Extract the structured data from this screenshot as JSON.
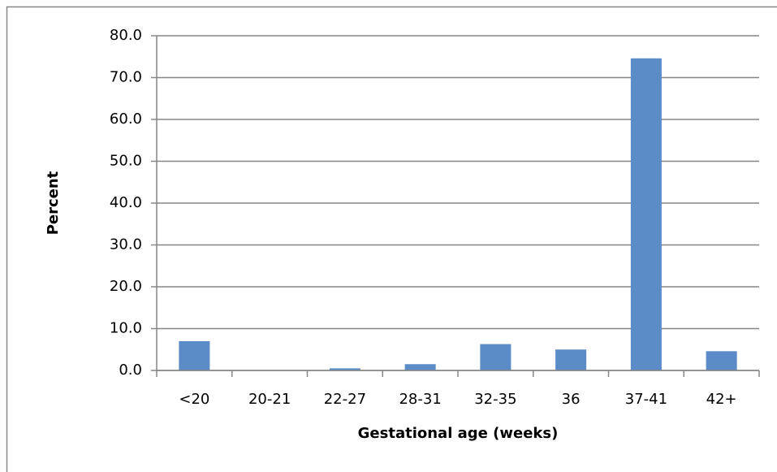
{
  "chart_data": {
    "type": "bar",
    "x_label": "Gestational age (weeks)",
    "y_label": "Percent",
    "categories": [
      "<20",
      "20-21",
      "22-27",
      "28-31",
      "32-35",
      "36",
      "37-41",
      "42+"
    ],
    "values": [
      7.0,
      0.1,
      0.5,
      1.5,
      6.3,
      5.0,
      74.6,
      4.6
    ],
    "color": "#5b8cc8",
    "ylim": [
      0,
      80
    ],
    "yticks": [
      {
        "value": 0,
        "label": "0.0"
      },
      {
        "value": 10,
        "label": "10.0"
      },
      {
        "value": 20,
        "label": "20.0"
      },
      {
        "value": 30,
        "label": "30.0"
      },
      {
        "value": 40,
        "label": "40.0"
      },
      {
        "value": 50,
        "label": "50.0"
      },
      {
        "value": 60,
        "label": "60.0"
      },
      {
        "value": 70,
        "label": "70.0"
      },
      {
        "value": 80,
        "label": "80.0"
      }
    ],
    "grid": true
  }
}
